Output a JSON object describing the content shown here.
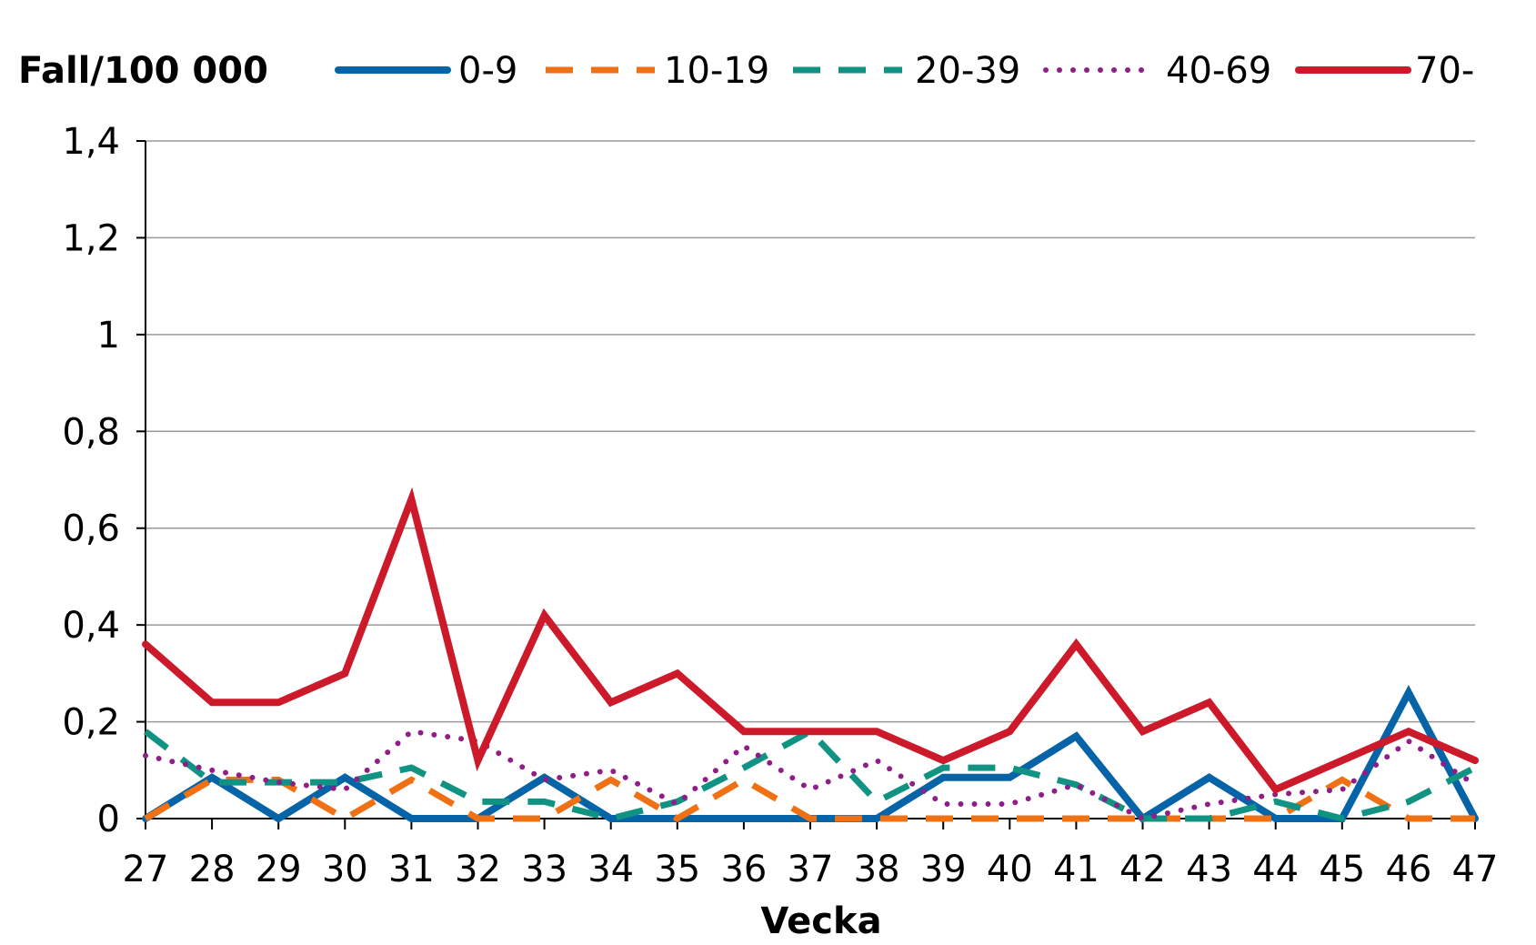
{
  "chart_data": {
    "type": "line",
    "ylabel": "Fall/100 000",
    "xlabel": "Vecka",
    "x": [
      "27",
      "28",
      "29",
      "30",
      "31",
      "32",
      "33",
      "34",
      "35",
      "36",
      "37",
      "38",
      "39",
      "40",
      "41",
      "42",
      "43",
      "44",
      "45",
      "46",
      "47"
    ],
    "yticks": [
      "0",
      "0,2",
      "0,4",
      "0,6",
      "0,8",
      "1",
      "1,2",
      "1,4"
    ],
    "ylim": [
      0,
      1.4
    ],
    "grid": true,
    "legend_position": "top",
    "series": [
      {
        "name": "0-9",
        "style": "solid",
        "color": "#0563A8",
        "values": [
          0,
          0.085,
          0,
          0.085,
          0,
          0,
          0.085,
          0,
          0,
          0,
          0,
          0,
          0.085,
          0.085,
          0.17,
          0,
          0.085,
          0,
          0,
          0.26,
          0
        ]
      },
      {
        "name": "10-19",
        "style": "dashed",
        "color": "#F07114",
        "values": [
          0,
          0.08,
          0.08,
          0,
          0.08,
          0,
          0,
          0.08,
          0,
          0.08,
          0,
          0,
          0,
          0,
          0,
          0,
          0,
          0,
          0.08,
          0,
          0
        ]
      },
      {
        "name": "20-39",
        "style": "dashed",
        "color": "#109383",
        "values": [
          0.18,
          0.075,
          0.075,
          0.075,
          0.105,
          0.035,
          0.035,
          0,
          0.035,
          0.105,
          0.18,
          0.035,
          0.105,
          0.105,
          0.07,
          0,
          0,
          0.035,
          0,
          0.035,
          0.105
        ]
      },
      {
        "name": "40-69",
        "style": "dotted",
        "color": "#8F1E88",
        "values": [
          0.13,
          0.1,
          0.075,
          0.06,
          0.18,
          0.16,
          0.08,
          0.1,
          0.03,
          0.15,
          0.06,
          0.12,
          0.03,
          0.03,
          0.07,
          0,
          0.03,
          0.05,
          0.06,
          0.16,
          0.07
        ]
      },
      {
        "name": "70-",
        "style": "solid",
        "color": "#CC1A2B",
        "values": [
          0.36,
          0.24,
          0.24,
          0.3,
          0.66,
          0.12,
          0.42,
          0.24,
          0.3,
          0.18,
          0.18,
          0.18,
          0.12,
          0.18,
          0.36,
          0.18,
          0.24,
          0.06,
          0.12,
          0.18,
          0.12
        ]
      }
    ]
  }
}
